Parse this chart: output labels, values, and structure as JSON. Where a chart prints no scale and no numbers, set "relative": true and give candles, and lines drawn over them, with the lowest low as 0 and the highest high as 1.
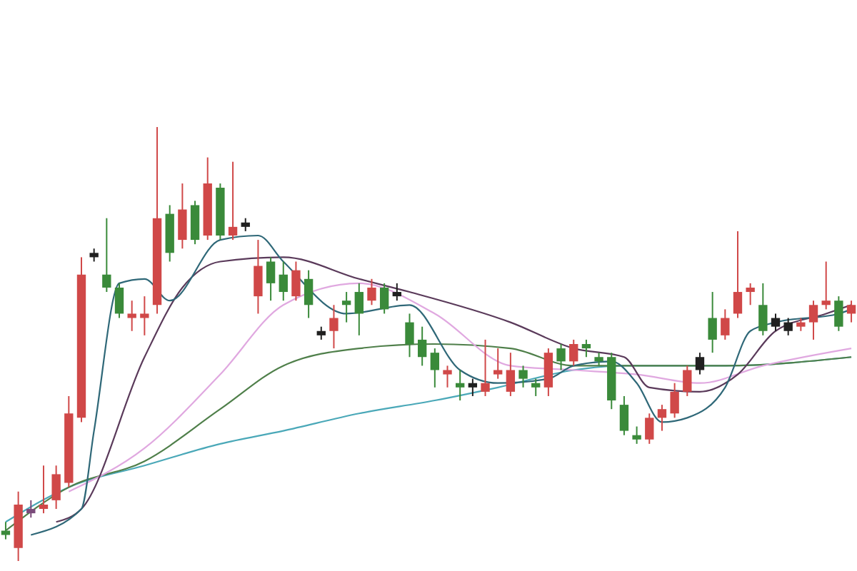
{
  "chart_data": {
    "type": "candlestick",
    "relative": true,
    "categories": [
      null,
      null,
      null,
      null,
      null,
      null,
      null,
      null,
      null,
      null,
      null,
      null,
      null,
      null,
      null,
      null,
      null,
      null,
      null,
      null,
      null,
      null,
      null,
      null,
      null,
      null,
      null,
      null,
      null,
      null,
      null,
      null,
      null,
      null,
      null,
      null,
      null,
      null,
      null,
      null,
      null,
      null,
      null,
      null,
      null,
      null,
      null,
      null,
      null,
      null,
      null,
      null,
      null,
      null,
      null,
      null,
      null,
      null,
      null,
      null,
      null,
      null,
      null,
      null,
      null,
      null,
      null,
      null
    ],
    "ohlc": [
      [
        0.07,
        0.09,
        0.05,
        0.06
      ],
      [
        0.03,
        0.16,
        0,
        0.13
      ],
      [
        0.12,
        0.14,
        0.1,
        0.11
      ],
      [
        0.12,
        0.22,
        0.11,
        0.13
      ],
      [
        0.14,
        0.22,
        0.12,
        0.2
      ],
      [
        0.18,
        0.38,
        0.17,
        0.34
      ],
      [
        0.33,
        0.7,
        0.32,
        0.66
      ],
      [
        0.71,
        0.72,
        0.69,
        0.7
      ],
      [
        0.66,
        0.79,
        0.62,
        0.63
      ],
      [
        0.63,
        0.64,
        0.56,
        0.57
      ],
      [
        0.56,
        0.6,
        0.53,
        0.57
      ],
      [
        0.56,
        0.61,
        0.52,
        0.57
      ],
      [
        0.59,
        1,
        0.57,
        0.79
      ],
      [
        0.8,
        0.82,
        0.69,
        0.71
      ],
      [
        0.74,
        0.87,
        0.72,
        0.81
      ],
      [
        0.82,
        0.83,
        0.73,
        0.74
      ],
      [
        0.75,
        0.93,
        0.74,
        0.87
      ],
      [
        0.86,
        0.87,
        0.74,
        0.75
      ],
      [
        0.75,
        0.92,
        0.74,
        0.77
      ],
      [
        0.78,
        0.79,
        0.76,
        0.77
      ],
      [
        0.61,
        0.74,
        0.57,
        0.68
      ],
      [
        0.69,
        0.7,
        0.6,
        0.64
      ],
      [
        0.66,
        0.69,
        0.6,
        0.62
      ],
      [
        0.61,
        0.69,
        0.6,
        0.67
      ],
      [
        0.65,
        0.67,
        0.56,
        0.59
      ],
      [
        0.53,
        0.54,
        0.51,
        0.52
      ],
      [
        0.53,
        0.59,
        0.49,
        0.56
      ],
      [
        0.6,
        0.62,
        0.55,
        0.59
      ],
      [
        0.62,
        0.64,
        0.52,
        0.57
      ],
      [
        0.6,
        0.65,
        0.59,
        0.63
      ],
      [
        0.63,
        0.64,
        0.57,
        0.58
      ],
      [
        0.62,
        0.64,
        0.6,
        0.61
      ],
      [
        0.55,
        0.57,
        0.47,
        0.5
      ],
      [
        0.51,
        0.54,
        0.45,
        0.47
      ],
      [
        0.48,
        0.49,
        0.4,
        0.44
      ],
      [
        0.43,
        0.45,
        0.4,
        0.44
      ],
      [
        0.41,
        0.44,
        0.37,
        0.4
      ],
      [
        0.41,
        0.42,
        0.38,
        0.4
      ],
      [
        0.39,
        0.51,
        0.38,
        0.41
      ],
      [
        0.43,
        0.49,
        0.42,
        0.44
      ],
      [
        0.39,
        0.48,
        0.38,
        0.44
      ],
      [
        0.44,
        0.45,
        0.4,
        0.42
      ],
      [
        0.41,
        0.42,
        0.38,
        0.4
      ],
      [
        0.4,
        0.49,
        0.38,
        0.48
      ],
      [
        0.49,
        0.5,
        0.44,
        0.46
      ],
      [
        0.46,
        0.51,
        0.45,
        0.5
      ],
      [
        0.5,
        0.51,
        0.47,
        0.49
      ],
      [
        0.47,
        0.48,
        0.45,
        0.46
      ],
      [
        0.47,
        0.48,
        0.35,
        0.37
      ],
      [
        0.36,
        0.38,
        0.29,
        0.3
      ],
      [
        0.29,
        0.31,
        0.27,
        0.28
      ],
      [
        0.28,
        0.34,
        0.27,
        0.33
      ],
      [
        0.33,
        0.36,
        0.3,
        0.35
      ],
      [
        0.34,
        0.41,
        0.33,
        0.39
      ],
      [
        0.39,
        0.45,
        0.38,
        0.44
      ],
      [
        0.47,
        0.48,
        0.43,
        0.44
      ],
      [
        0.56,
        0.62,
        0.48,
        0.51
      ],
      [
        0.52,
        0.58,
        0.51,
        0.56
      ],
      [
        0.57,
        0.76,
        0.56,
        0.62
      ],
      [
        0.62,
        0.64,
        0.59,
        0.63
      ],
      [
        0.59,
        0.64,
        0.52,
        0.53
      ],
      [
        0.56,
        0.57,
        0.53,
        0.54
      ],
      [
        0.55,
        0.56,
        0.52,
        0.53
      ],
      [
        0.54,
        0.56,
        0.53,
        0.55
      ],
      [
        0.55,
        0.6,
        0.51,
        0.59
      ],
      [
        0.59,
        0.69,
        0.58,
        0.6
      ],
      [
        0.6,
        0.61,
        0.53,
        0.54
      ],
      [
        0.57,
        0.6,
        0.55,
        0.59
      ]
    ],
    "colors": [
      "#3a8a3a",
      "#d04848",
      "#7a4a7a",
      "#d04848",
      "#d04848",
      "#d04848",
      "#d04848",
      "#202020",
      "#3a8a3a",
      "#3a8a3a",
      "#d04848",
      "#d04848",
      "#d04848",
      "#3a8a3a",
      "#d04848",
      "#3a8a3a",
      "#d04848",
      "#3a8a3a",
      "#d04848",
      "#202020",
      "#d04848",
      "#3a8a3a",
      "#3a8a3a",
      "#d04848",
      "#3a8a3a",
      "#202020",
      "#d04848",
      "#3a8a3a",
      "#3a8a3a",
      "#d04848",
      "#3a8a3a",
      "#202020",
      "#3a8a3a",
      "#3a8a3a",
      "#3a8a3a",
      "#d04848",
      "#3a8a3a",
      "#202020",
      "#d04848",
      "#d04848",
      "#d04848",
      "#3a8a3a",
      "#3a8a3a",
      "#d04848",
      "#3a8a3a",
      "#d04848",
      "#3a8a3a",
      "#3a8a3a",
      "#3a8a3a",
      "#3a8a3a",
      "#3a8a3a",
      "#d04848",
      "#d04848",
      "#d04848",
      "#d04848",
      "#202020",
      "#3a8a3a",
      "#d04848",
      "#d04848",
      "#d04848",
      "#3a8a3a",
      "#202020",
      "#202020",
      "#d04848",
      "#d04848",
      "#d04848",
      "#3a8a3a",
      "#d04848"
    ],
    "series": [
      {
        "type": "line",
        "color": "#4aa8b8",
        "values": [
          0.09,
          null,
          null,
          null,
          null,
          0.17,
          null,
          null,
          null,
          null,
          null,
          0.22,
          null,
          null,
          null,
          null,
          null,
          0.27,
          null,
          null,
          null,
          null,
          0.3,
          null,
          null,
          null,
          null,
          null,
          0.34,
          null,
          null,
          null,
          null,
          null,
          0.37,
          null,
          null,
          null,
          null,
          0.4,
          null,
          null,
          null,
          null,
          null,
          0.44,
          null,
          null,
          null,
          0.45,
          null,
          null,
          null,
          null,
          null,
          null,
          null,
          0.45,
          null,
          null,
          null,
          null,
          null,
          null,
          null,
          null,
          null,
          0.47
        ]
      },
      {
        "type": "line",
        "color": "#4f7f4a",
        "values": [
          0.07,
          null,
          null,
          null,
          null,
          0.17,
          null,
          null,
          null,
          null,
          null,
          0.23,
          null,
          null,
          null,
          null,
          null,
          0.35,
          null,
          null,
          null,
          null,
          0.45,
          null,
          null,
          null,
          null,
          null,
          0.49,
          null,
          null,
          null,
          null,
          null,
          0.5,
          null,
          null,
          null,
          null,
          null,
          0.49,
          null,
          null,
          null,
          null,
          0.45,
          null,
          null,
          null,
          null,
          null,
          0.45,
          null,
          null,
          null,
          null,
          null,
          0.45,
          null,
          null,
          null,
          null,
          null,
          null,
          null,
          null,
          null,
          0.47
        ]
      },
      {
        "type": "line",
        "color": "#e0a8e0",
        "values": [
          null,
          null,
          null,
          null,
          null,
          0.16,
          null,
          null,
          null,
          null,
          null,
          0.26,
          null,
          null,
          null,
          null,
          null,
          0.43,
          null,
          null,
          null,
          null,
          0.59,
          null,
          null,
          null,
          null,
          null,
          0.64,
          null,
          null,
          null,
          null,
          null,
          0.57,
          null,
          null,
          null,
          null,
          null,
          0.45,
          null,
          null,
          null,
          null,
          0.44,
          null,
          null,
          null,
          null,
          0.43,
          null,
          null,
          null,
          null,
          0.41,
          null,
          null,
          null,
          null,
          0.45,
          null,
          null,
          null,
          null,
          null,
          null,
          0.49
        ]
      },
      {
        "type": "line",
        "color": "#5a3a5a",
        "values": [
          null,
          null,
          null,
          null,
          0.09,
          null,
          0.12,
          null,
          null,
          null,
          null,
          0.47,
          null,
          null,
          0.63,
          null,
          null,
          0.69,
          null,
          null,
          null,
          null,
          0.7,
          null,
          null,
          null,
          null,
          null,
          0.65,
          null,
          null,
          null,
          0.62,
          null,
          null,
          null,
          null,
          null,
          null,
          null,
          0.55,
          null,
          null,
          null,
          null,
          0.49,
          null,
          null,
          null,
          0.47,
          null,
          0.4,
          null,
          null,
          null,
          0.39,
          null,
          null,
          0.43,
          null,
          null,
          0.53,
          null,
          null,
          null,
          0.57,
          null,
          0.59
        ]
      },
      {
        "type": "line",
        "color": "#2f6878",
        "values": [
          null,
          null,
          0.06,
          null,
          null,
          null,
          0.12,
          0.3,
          null,
          0.64,
          null,
          0.65,
          null,
          0.6,
          null,
          null,
          null,
          0.74,
          null,
          null,
          0.75,
          null,
          0.69,
          null,
          null,
          null,
          null,
          0.57,
          null,
          null,
          null,
          null,
          0.59,
          null,
          null,
          null,
          0.44,
          null,
          null,
          0.41,
          null,
          null,
          null,
          0.42,
          null,
          0.45,
          null,
          null,
          0.46,
          null,
          0.41,
          null,
          0.32,
          null,
          0.33,
          null,
          null,
          0.4,
          null,
          0.53,
          null,
          0.55,
          null,
          null,
          null,
          null,
          0.57,
          0.58
        ]
      }
    ]
  }
}
